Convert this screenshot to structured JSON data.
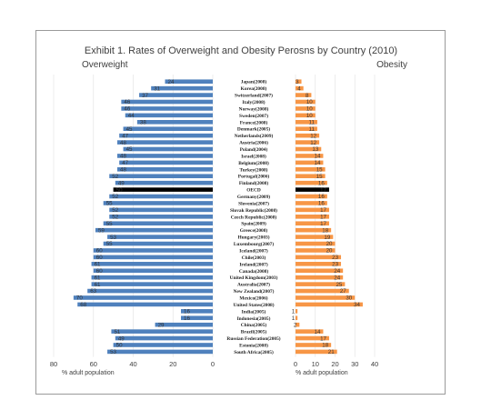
{
  "chart_data": {
    "type": "bar",
    "title": "Exhibit 1.  Rates of Overweight and Obesity Perosns by Country (2010)",
    "left_panel": {
      "heading": "Overweight",
      "xlabel": "% adult population",
      "xlim": [
        80,
        0
      ],
      "ticks": [
        80,
        60,
        40,
        20,
        0
      ]
    },
    "right_panel": {
      "heading": "Obesity",
      "xlabel": "% adult population",
      "xlim": [
        0,
        40
      ],
      "ticks": [
        0,
        10,
        20,
        30,
        40
      ]
    },
    "colors": {
      "overweight": "#4f81bd",
      "obesity": "#f79646",
      "oecd": "#000000"
    },
    "categories": [
      "Japan(2008)",
      "Korea(2008)",
      "Switzerland(2007)",
      "Italy(2008)",
      "Norway(2008)",
      "Sweden(2007)",
      "France(2008)",
      "Denmark(2005)",
      "Netherlands(2009)",
      "Austria(2006)",
      "Poland(2004)",
      "Israel(2008)",
      "Belgium(2008)",
      "Turkey(2008)",
      "Portugal(2006)",
      "Finland(2008)",
      "OECD",
      "Germany(2009)",
      "Slovenia(2007)",
      "Slovak Republic(2008)",
      "Czech Republic(2008)",
      "Spain(2009)",
      "Greece(2008)",
      "Hungary(2003)",
      "Luxembourg(2007)",
      "Iceland(2007)",
      "Chile(2003)",
      "Ireland(2007)",
      "Canada(2008)",
      "United Kingdom(2003)",
      "Australia(2007)",
      "New Zealand(2007)",
      "Mexico(2006)",
      "United States(2008)",
      "India(2005)",
      "Indonesia(2005)",
      "China(2005)",
      "Brazil(2005)",
      "Russian Federation(2005)",
      "Estonia(2008)",
      "South Africa(2005)"
    ],
    "series": [
      {
        "name": "Overweight",
        "values": [
          24,
          31,
          37,
          46,
          46,
          44,
          38,
          45,
          47,
          48,
          45,
          48,
          47,
          48,
          52,
          49,
          50,
          52,
          55,
          52,
          52,
          55,
          59,
          53,
          55,
          60,
          60,
          61,
          60,
          61,
          61,
          63,
          70,
          68,
          16,
          16,
          29,
          51,
          49,
          50,
          53
        ]
      },
      {
        "name": "Obesity",
        "values": [
          3,
          4,
          8,
          10,
          10,
          10,
          11,
          11,
          12,
          12,
          13,
          14,
          14,
          15,
          15,
          16,
          17,
          16,
          16,
          17,
          17,
          17,
          18,
          19,
          20,
          20,
          23,
          23,
          24,
          24,
          25,
          27,
          30,
          34,
          1,
          1,
          2,
          14,
          17,
          18,
          21
        ]
      }
    ],
    "highlight_category": "OECD"
  }
}
